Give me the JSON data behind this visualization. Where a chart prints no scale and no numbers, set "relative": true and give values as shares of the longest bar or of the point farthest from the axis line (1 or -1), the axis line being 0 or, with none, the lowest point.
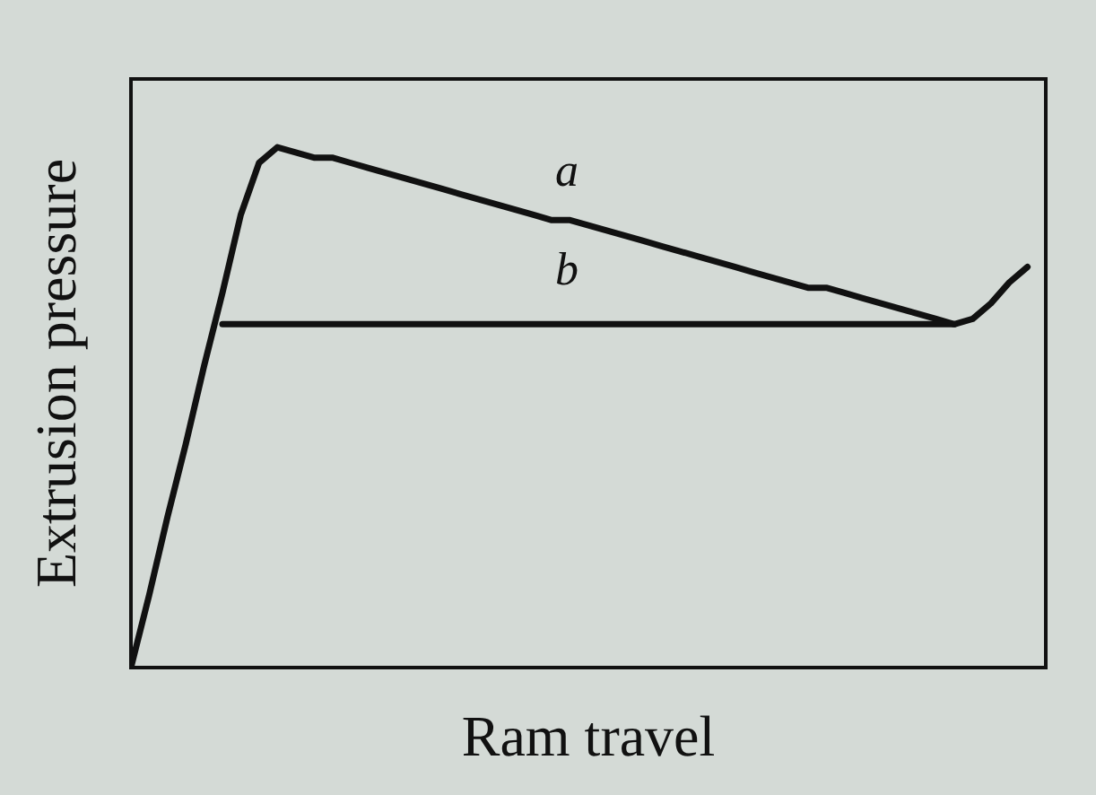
{
  "chart_data": {
    "type": "line",
    "relative": true,
    "xlabel": "Ram travel",
    "ylabel": "Extrusion pressure",
    "marker": "none",
    "categories": [
      null,
      null,
      null,
      null,
      null,
      null,
      null,
      null,
      null,
      null,
      null,
      null,
      null,
      null,
      null,
      null,
      null,
      null,
      null,
      null,
      null,
      null,
      null,
      null,
      null,
      null,
      null,
      null,
      null,
      null,
      null,
      null,
      null,
      null,
      null,
      null,
      null,
      null,
      null,
      null,
      null,
      null,
      null,
      null,
      null,
      null,
      null,
      null,
      null,
      null
    ],
    "series": [
      {
        "name": "a",
        "color": "#111111",
        "values": [
          0,
          0.14,
          0.29,
          0.43,
          0.58,
          0.72,
          0.87,
          0.97,
          1.0,
          0.99,
          0.98,
          0.98,
          0.97,
          0.96,
          0.95,
          0.94,
          0.93,
          0.92,
          0.91,
          0.9,
          0.89,
          0.88,
          0.87,
          0.86,
          0.86,
          0.85,
          0.84,
          0.83,
          0.82,
          0.81,
          0.8,
          0.79,
          0.78,
          0.77,
          0.76,
          0.75,
          0.74,
          0.73,
          0.73,
          0.72,
          0.71,
          0.7,
          0.69,
          0.68,
          0.67,
          0.66,
          0.67,
          0.7,
          0.74,
          0.77
        ]
      },
      {
        "name": "b",
        "color": "#111111",
        "values": [
          null,
          null,
          null,
          null,
          null,
          0.66,
          0.66,
          0.66,
          0.66,
          0.66,
          0.66,
          0.66,
          0.66,
          0.66,
          0.66,
          0.66,
          0.66,
          0.66,
          0.66,
          0.66,
          0.66,
          0.66,
          0.66,
          0.66,
          0.66,
          0.66,
          0.66,
          0.66,
          0.66,
          0.66,
          0.66,
          0.66,
          0.66,
          0.66,
          0.66,
          0.66,
          0.66,
          0.66,
          0.66,
          0.66,
          0.66,
          0.66,
          0.66,
          0.66,
          0.66,
          0.66,
          null,
          null,
          null,
          null
        ]
      }
    ]
  }
}
